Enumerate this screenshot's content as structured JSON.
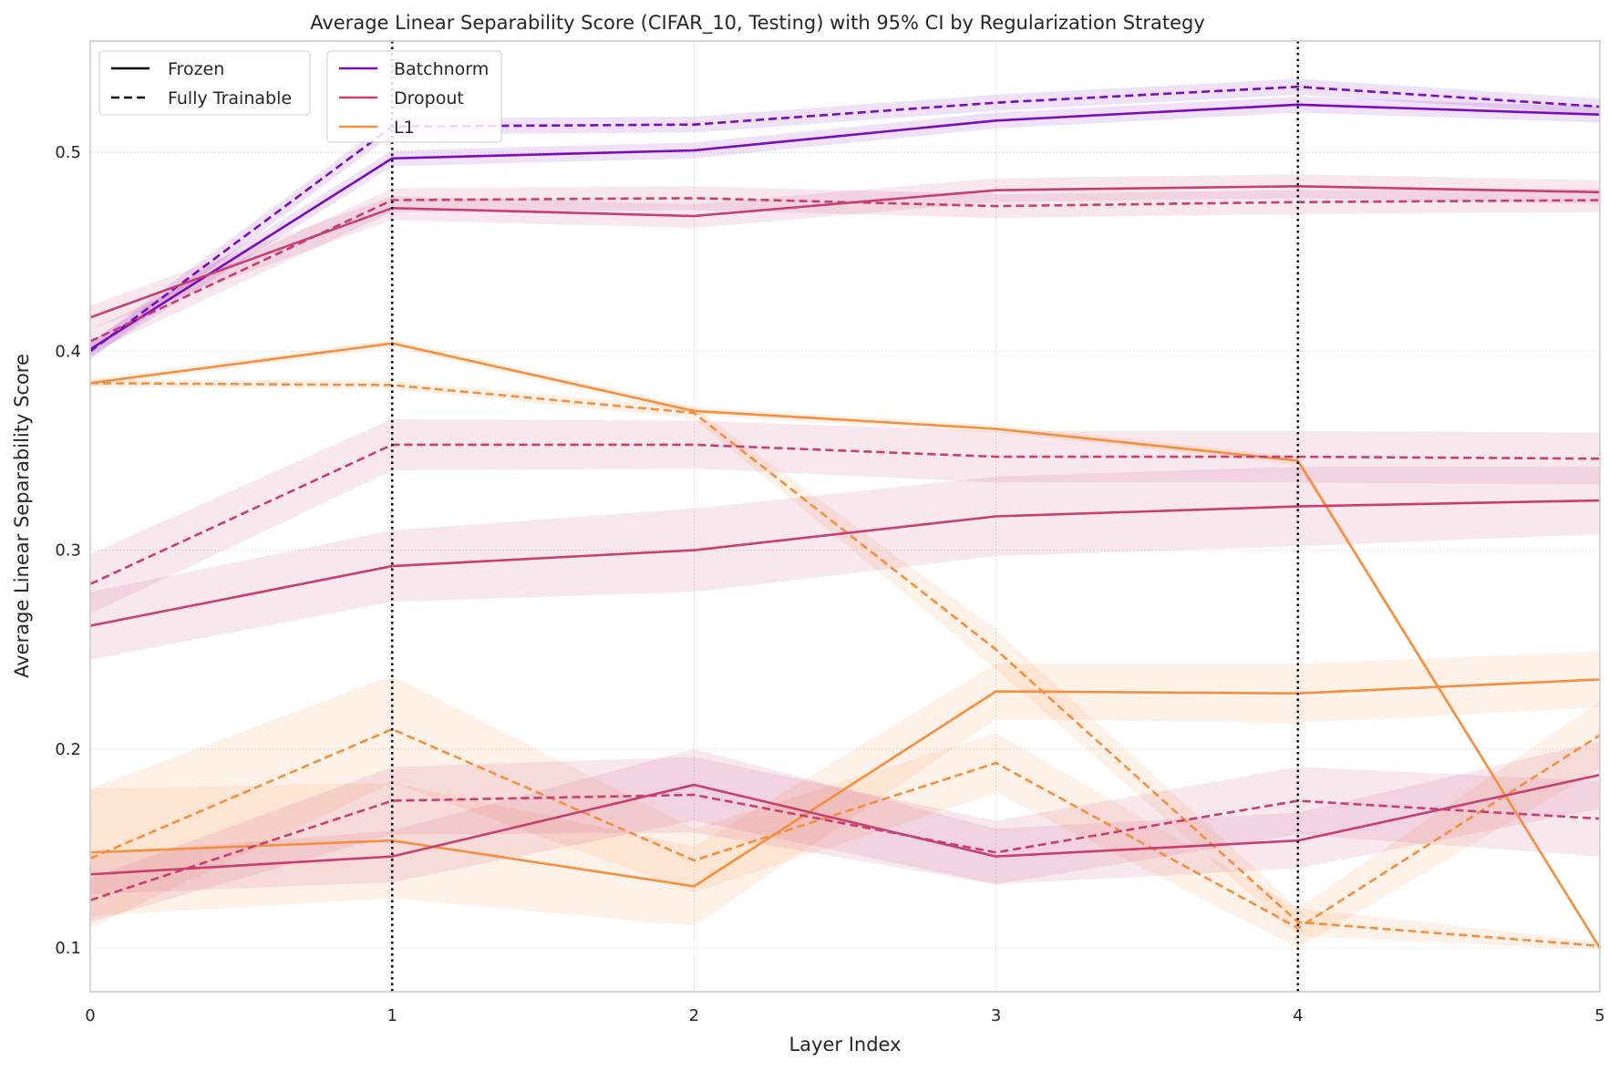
{
  "chart_data": {
    "type": "line",
    "title": "Average Linear Separability Score (CIFAR_10, Testing) with 95% CI by Regularization Strategy",
    "xlabel": "Layer Index",
    "ylabel": "Average Linear Separability Score",
    "xlim": [
      0,
      5
    ],
    "ylim": [
      0.078,
      0.556
    ],
    "x_ticks": [
      0,
      1,
      2,
      3,
      4,
      5
    ],
    "x_tick_labels": [
      "0",
      "1",
      "2",
      "3",
      "4",
      "5"
    ],
    "y_ticks": [
      0.1,
      0.2,
      0.3,
      0.4,
      0.5
    ],
    "y_tick_labels": [
      "0.1",
      "0.2",
      "0.3",
      "0.4",
      "0.5"
    ],
    "grid": true,
    "vertical_reference_lines": [
      1,
      4
    ],
    "style_legend": {
      "placement": "top-left",
      "entries": [
        {
          "label": "Frozen",
          "dash": "solid"
        },
        {
          "label": "Fully Trainable",
          "dash": "dashed"
        }
      ]
    },
    "color_legend": {
      "placement": "top-left",
      "entries": [
        {
          "label": "Batchnorm",
          "color": "#7b0cbd"
        },
        {
          "label": "Dropout",
          "color": "#c93e72"
        },
        {
          "label": "L1",
          "color": "#f58f3e"
        }
      ]
    },
    "x": [
      0,
      1,
      2,
      3,
      4,
      5
    ],
    "series": [
      {
        "strategy": "Batchnorm",
        "mode": "Frozen",
        "color": "#7b0cbd",
        "dash": "solid",
        "y": [
          0.401,
          0.497,
          0.501,
          0.516,
          0.524,
          0.519
        ],
        "ci_low": [
          0.397,
          0.493,
          0.497,
          0.512,
          0.52,
          0.515
        ],
        "ci_high": [
          0.405,
          0.501,
          0.505,
          0.52,
          0.528,
          0.523
        ]
      },
      {
        "strategy": "Batchnorm",
        "mode": "Fully Trainable",
        "color": "#7b0cbd",
        "dash": "dashed",
        "y": [
          0.4,
          0.513,
          0.514,
          0.525,
          0.533,
          0.523
        ],
        "ci_low": [
          0.396,
          0.509,
          0.51,
          0.521,
          0.529,
          0.519
        ],
        "ci_high": [
          0.404,
          0.517,
          0.518,
          0.529,
          0.537,
          0.527
        ]
      },
      {
        "strategy": "Dropout",
        "mode": "Frozen",
        "color": "#c93e72",
        "dash": "solid",
        "y": [
          0.417,
          0.472,
          0.468,
          0.481,
          0.483,
          0.48
        ],
        "ci_low": [
          0.411,
          0.466,
          0.462,
          0.475,
          0.477,
          0.474
        ],
        "ci_high": [
          0.423,
          0.478,
          0.474,
          0.487,
          0.489,
          0.486
        ]
      },
      {
        "strategy": "Dropout",
        "mode": "Fully Trainable",
        "color": "#c93e72",
        "dash": "dashed",
        "y": [
          0.405,
          0.476,
          0.477,
          0.473,
          0.475,
          0.476
        ],
        "ci_low": [
          0.399,
          0.47,
          0.471,
          0.467,
          0.469,
          0.47
        ],
        "ci_high": [
          0.411,
          0.482,
          0.483,
          0.479,
          0.481,
          0.482
        ]
      },
      {
        "strategy": "L1",
        "mode": "Frozen",
        "color": "#f58f3e",
        "dash": "solid",
        "y": [
          0.384,
          0.404,
          0.37,
          0.361,
          0.345,
          0.1
        ],
        "ci_low": [
          0.382,
          0.402,
          0.368,
          0.359,
          0.343,
          0.099
        ],
        "ci_high": [
          0.386,
          0.406,
          0.372,
          0.363,
          0.347,
          0.101
        ]
      },
      {
        "strategy": "L1",
        "mode": "Fully Trainable",
        "color": "#f58f3e",
        "dash": "dashed",
        "y": [
          0.384,
          0.383,
          0.369,
          0.25,
          0.113,
          0.101
        ],
        "ci_low": [
          0.382,
          0.381,
          0.366,
          0.24,
          0.106,
          0.099
        ],
        "ci_high": [
          0.386,
          0.385,
          0.372,
          0.26,
          0.12,
          0.103
        ]
      },
      {
        "strategy": "Dropout",
        "mode": "Fully Trainable",
        "color": "#c93e72",
        "dash": "dashed",
        "y": [
          0.283,
          0.353,
          0.353,
          0.347,
          0.347,
          0.346
        ],
        "ci_low": [
          0.268,
          0.34,
          0.341,
          0.334,
          0.334,
          0.333
        ],
        "ci_high": [
          0.298,
          0.366,
          0.365,
          0.36,
          0.36,
          0.359
        ]
      },
      {
        "strategy": "Dropout",
        "mode": "Frozen",
        "color": "#c93e72",
        "dash": "solid",
        "y": [
          0.262,
          0.292,
          0.3,
          0.317,
          0.322,
          0.325
        ],
        "ci_low": [
          0.245,
          0.274,
          0.279,
          0.297,
          0.302,
          0.308
        ],
        "ci_high": [
          0.279,
          0.31,
          0.321,
          0.337,
          0.342,
          0.342
        ]
      },
      {
        "strategy": "L1",
        "mode": "Frozen",
        "color": "#f58f3e",
        "dash": "solid",
        "y": [
          0.148,
          0.154,
          0.131,
          0.229,
          0.228,
          0.235
        ],
        "ci_low": [
          0.116,
          0.125,
          0.111,
          0.215,
          0.213,
          0.221
        ],
        "ci_high": [
          0.18,
          0.183,
          0.151,
          0.243,
          0.243,
          0.249
        ]
      },
      {
        "strategy": "L1",
        "mode": "Fully Trainable",
        "color": "#f58f3e",
        "dash": "dashed",
        "y": [
          0.145,
          0.21,
          0.144,
          0.193,
          0.11,
          0.207
        ],
        "ci_low": [
          0.11,
          0.183,
          0.128,
          0.178,
          0.1,
          0.19
        ],
        "ci_high": [
          0.18,
          0.237,
          0.16,
          0.208,
          0.12,
          0.224
        ]
      },
      {
        "strategy": "Dropout",
        "mode": "Fully Trainable",
        "color": "#c93e72",
        "dash": "dashed",
        "y": [
          0.124,
          0.174,
          0.177,
          0.148,
          0.174,
          0.165
        ],
        "ci_low": [
          0.113,
          0.157,
          0.158,
          0.132,
          0.157,
          0.146
        ],
        "ci_high": [
          0.135,
          0.191,
          0.196,
          0.164,
          0.191,
          0.184
        ]
      },
      {
        "strategy": "Dropout",
        "mode": "Frozen",
        "color": "#c93e72",
        "dash": "solid",
        "y": [
          0.137,
          0.146,
          0.182,
          0.146,
          0.154,
          0.187
        ],
        "ci_low": [
          0.127,
          0.133,
          0.164,
          0.132,
          0.14,
          0.17
        ],
        "ci_high": [
          0.147,
          0.159,
          0.2,
          0.16,
          0.168,
          0.204
        ]
      }
    ]
  }
}
